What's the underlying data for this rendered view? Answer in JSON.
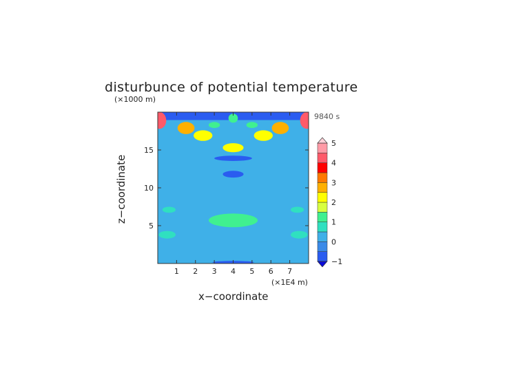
{
  "chart_data": {
    "type": "heatmap",
    "title": "disturbunce of potential temperature",
    "time_label": "9840 s",
    "xlabel": "x−coordinate",
    "ylabel": "z−coordinate",
    "x_unit": "(×1E4 m)",
    "z_unit": "(×1000 m)",
    "x_ticks": [
      "1",
      "2",
      "3",
      "4",
      "5",
      "6",
      "7"
    ],
    "x_tick_values": [
      1,
      2,
      3,
      4,
      5,
      6,
      7
    ],
    "y_ticks": [
      "5",
      "10",
      "15"
    ],
    "y_tick_values": [
      5,
      10,
      15
    ],
    "xlim": [
      0,
      8
    ],
    "zlim": [
      0,
      20
    ],
    "colorbar_ticks": [
      "5",
      "4",
      "3",
      "2",
      "1",
      "0",
      "−1"
    ],
    "colorbar_range": [
      -1,
      5
    ],
    "colorbar_levels": [
      -1,
      -0.5,
      0,
      0.5,
      1,
      1.5,
      2,
      2.5,
      3,
      3.5,
      4,
      4.5,
      5
    ],
    "colorbar_colors": [
      "#0a0ad8",
      "#2a5cf0",
      "#3a8ae8",
      "#3fb0e8",
      "#30e0c0",
      "#40f090",
      "#d8ff40",
      "#ffff00",
      "#ffb000",
      "#ff7800",
      "#ff0000",
      "#ff5a6a",
      "#ff9aa6",
      "#ffd0d8"
    ],
    "background_value": 0,
    "features": [
      {
        "kind": "band",
        "z": 19.5,
        "x0": 0,
        "x1": 8,
        "value": -0.7
      },
      {
        "kind": "blob",
        "x": 0.1,
        "z": 18.9,
        "rx": 0.35,
        "rz": 1.1,
        "value": 4.3
      },
      {
        "kind": "blob",
        "x": 7.9,
        "z": 18.9,
        "rx": 0.35,
        "rz": 1.1,
        "value": 4.3
      },
      {
        "kind": "blob",
        "x": 1.5,
        "z": 17.9,
        "rx": 0.45,
        "rz": 0.8,
        "value": 2.6
      },
      {
        "kind": "blob",
        "x": 6.5,
        "z": 17.9,
        "rx": 0.45,
        "rz": 0.8,
        "value": 2.6
      },
      {
        "kind": "blob",
        "x": 2.4,
        "z": 16.9,
        "rx": 0.5,
        "rz": 0.7,
        "value": 2.4
      },
      {
        "kind": "blob",
        "x": 5.6,
        "z": 16.9,
        "rx": 0.5,
        "rz": 0.7,
        "value": 2.4
      },
      {
        "kind": "blob",
        "x": 4.0,
        "z": 15.3,
        "rx": 0.55,
        "rz": 0.6,
        "value": 2.1
      },
      {
        "kind": "blob",
        "x": 4.0,
        "z": 19.2,
        "rx": 0.25,
        "rz": 0.6,
        "value": 1.4
      },
      {
        "kind": "blob",
        "x": 3.0,
        "z": 18.3,
        "rx": 0.3,
        "rz": 0.4,
        "value": 1.0
      },
      {
        "kind": "blob",
        "x": 5.0,
        "z": 18.3,
        "rx": 0.3,
        "rz": 0.4,
        "value": 1.0
      },
      {
        "kind": "blob",
        "x": 4.0,
        "z": 11.8,
        "rx": 0.55,
        "rz": 0.45,
        "value": -0.8
      },
      {
        "kind": "blob",
        "x": 4.0,
        "z": 13.9,
        "rx": 1.0,
        "rz": 0.35,
        "value": -0.6
      },
      {
        "kind": "blob",
        "x": 4.0,
        "z": 5.7,
        "rx": 1.3,
        "rz": 0.9,
        "value": 1.0
      },
      {
        "kind": "blob",
        "x": 0.5,
        "z": 3.8,
        "rx": 0.45,
        "rz": 0.5,
        "value": 0.9
      },
      {
        "kind": "blob",
        "x": 7.5,
        "z": 3.8,
        "rx": 0.45,
        "rz": 0.5,
        "value": 0.9
      },
      {
        "kind": "blob",
        "x": 0.6,
        "z": 7.1,
        "rx": 0.35,
        "rz": 0.4,
        "value": 0.6
      },
      {
        "kind": "blob",
        "x": 7.4,
        "z": 7.1,
        "rx": 0.35,
        "rz": 0.4,
        "value": 0.6
      },
      {
        "kind": "blob",
        "x": 4.0,
        "z": 0.15,
        "rx": 1.1,
        "rz": 0.2,
        "value": -0.8
      }
    ]
  }
}
